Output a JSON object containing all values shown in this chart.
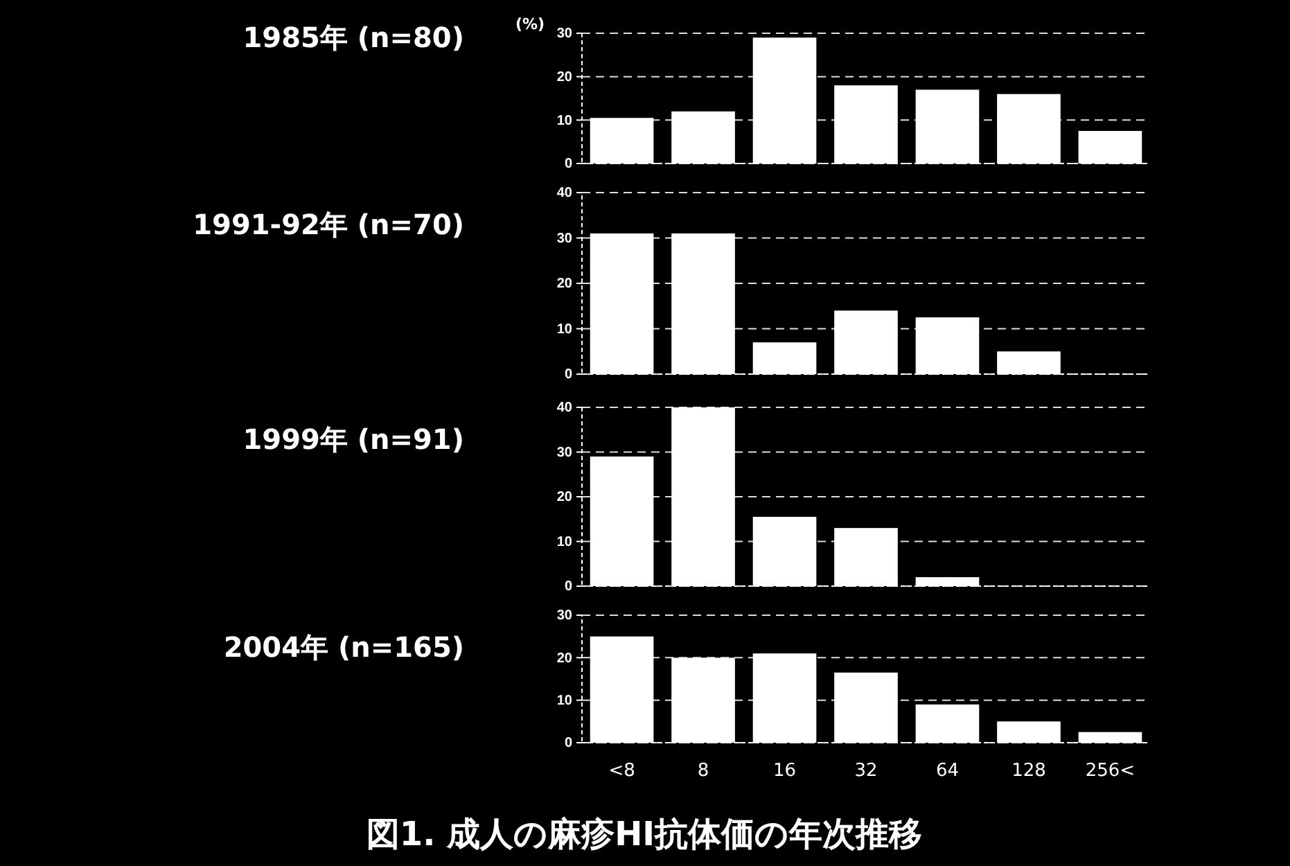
{
  "chart_data": [
    {
      "type": "bar",
      "title": "1985年 (n=80)",
      "ylabel": "(%)",
      "categories": [
        null,
        null,
        null,
        null,
        null,
        null,
        null
      ],
      "values": [
        10.5,
        12,
        29,
        18,
        17,
        16,
        7.5
      ],
      "color": "#ffffff",
      "ylim": [
        0,
        30
      ],
      "yticks": [
        0,
        10,
        20,
        30
      ],
      "grid": "y",
      "tick_labels": "y"
    },
    {
      "type": "bar",
      "title": "1991-92年 (n=70)",
      "categories": [
        null,
        null,
        null,
        null,
        null,
        null,
        null
      ],
      "values": [
        31,
        31,
        7,
        14,
        12.5,
        5,
        0
      ],
      "color": "#ffffff",
      "ylim": [
        0,
        40
      ],
      "yticks": [
        0,
        10,
        20,
        30,
        40
      ],
      "grid": "y",
      "tick_labels": "y"
    },
    {
      "type": "bar",
      "title": "1999年 (n=91)",
      "categories": [
        null,
        null,
        null,
        null,
        null,
        null,
        null
      ],
      "values": [
        29,
        40,
        15.5,
        13,
        2,
        0,
        0
      ],
      "color": "#ffffff",
      "ylim": [
        0,
        40
      ],
      "yticks": [
        0,
        10,
        20,
        30,
        40
      ],
      "grid": "y",
      "tick_labels": "y"
    },
    {
      "type": "bar",
      "title": "2004年 (n=165)",
      "categories": [
        "<8",
        "8",
        "16",
        "32",
        "64",
        "128",
        "256<"
      ],
      "values": [
        25,
        20,
        21,
        16.5,
        9,
        5,
        2.5
      ],
      "color": "#ffffff",
      "ylim": [
        0,
        30
      ],
      "yticks": [
        0,
        10,
        20,
        30
      ],
      "grid": "y",
      "annotations": [
        "図1. 成人の麻疹HI抗体価の年次推移"
      ]
    }
  ]
}
